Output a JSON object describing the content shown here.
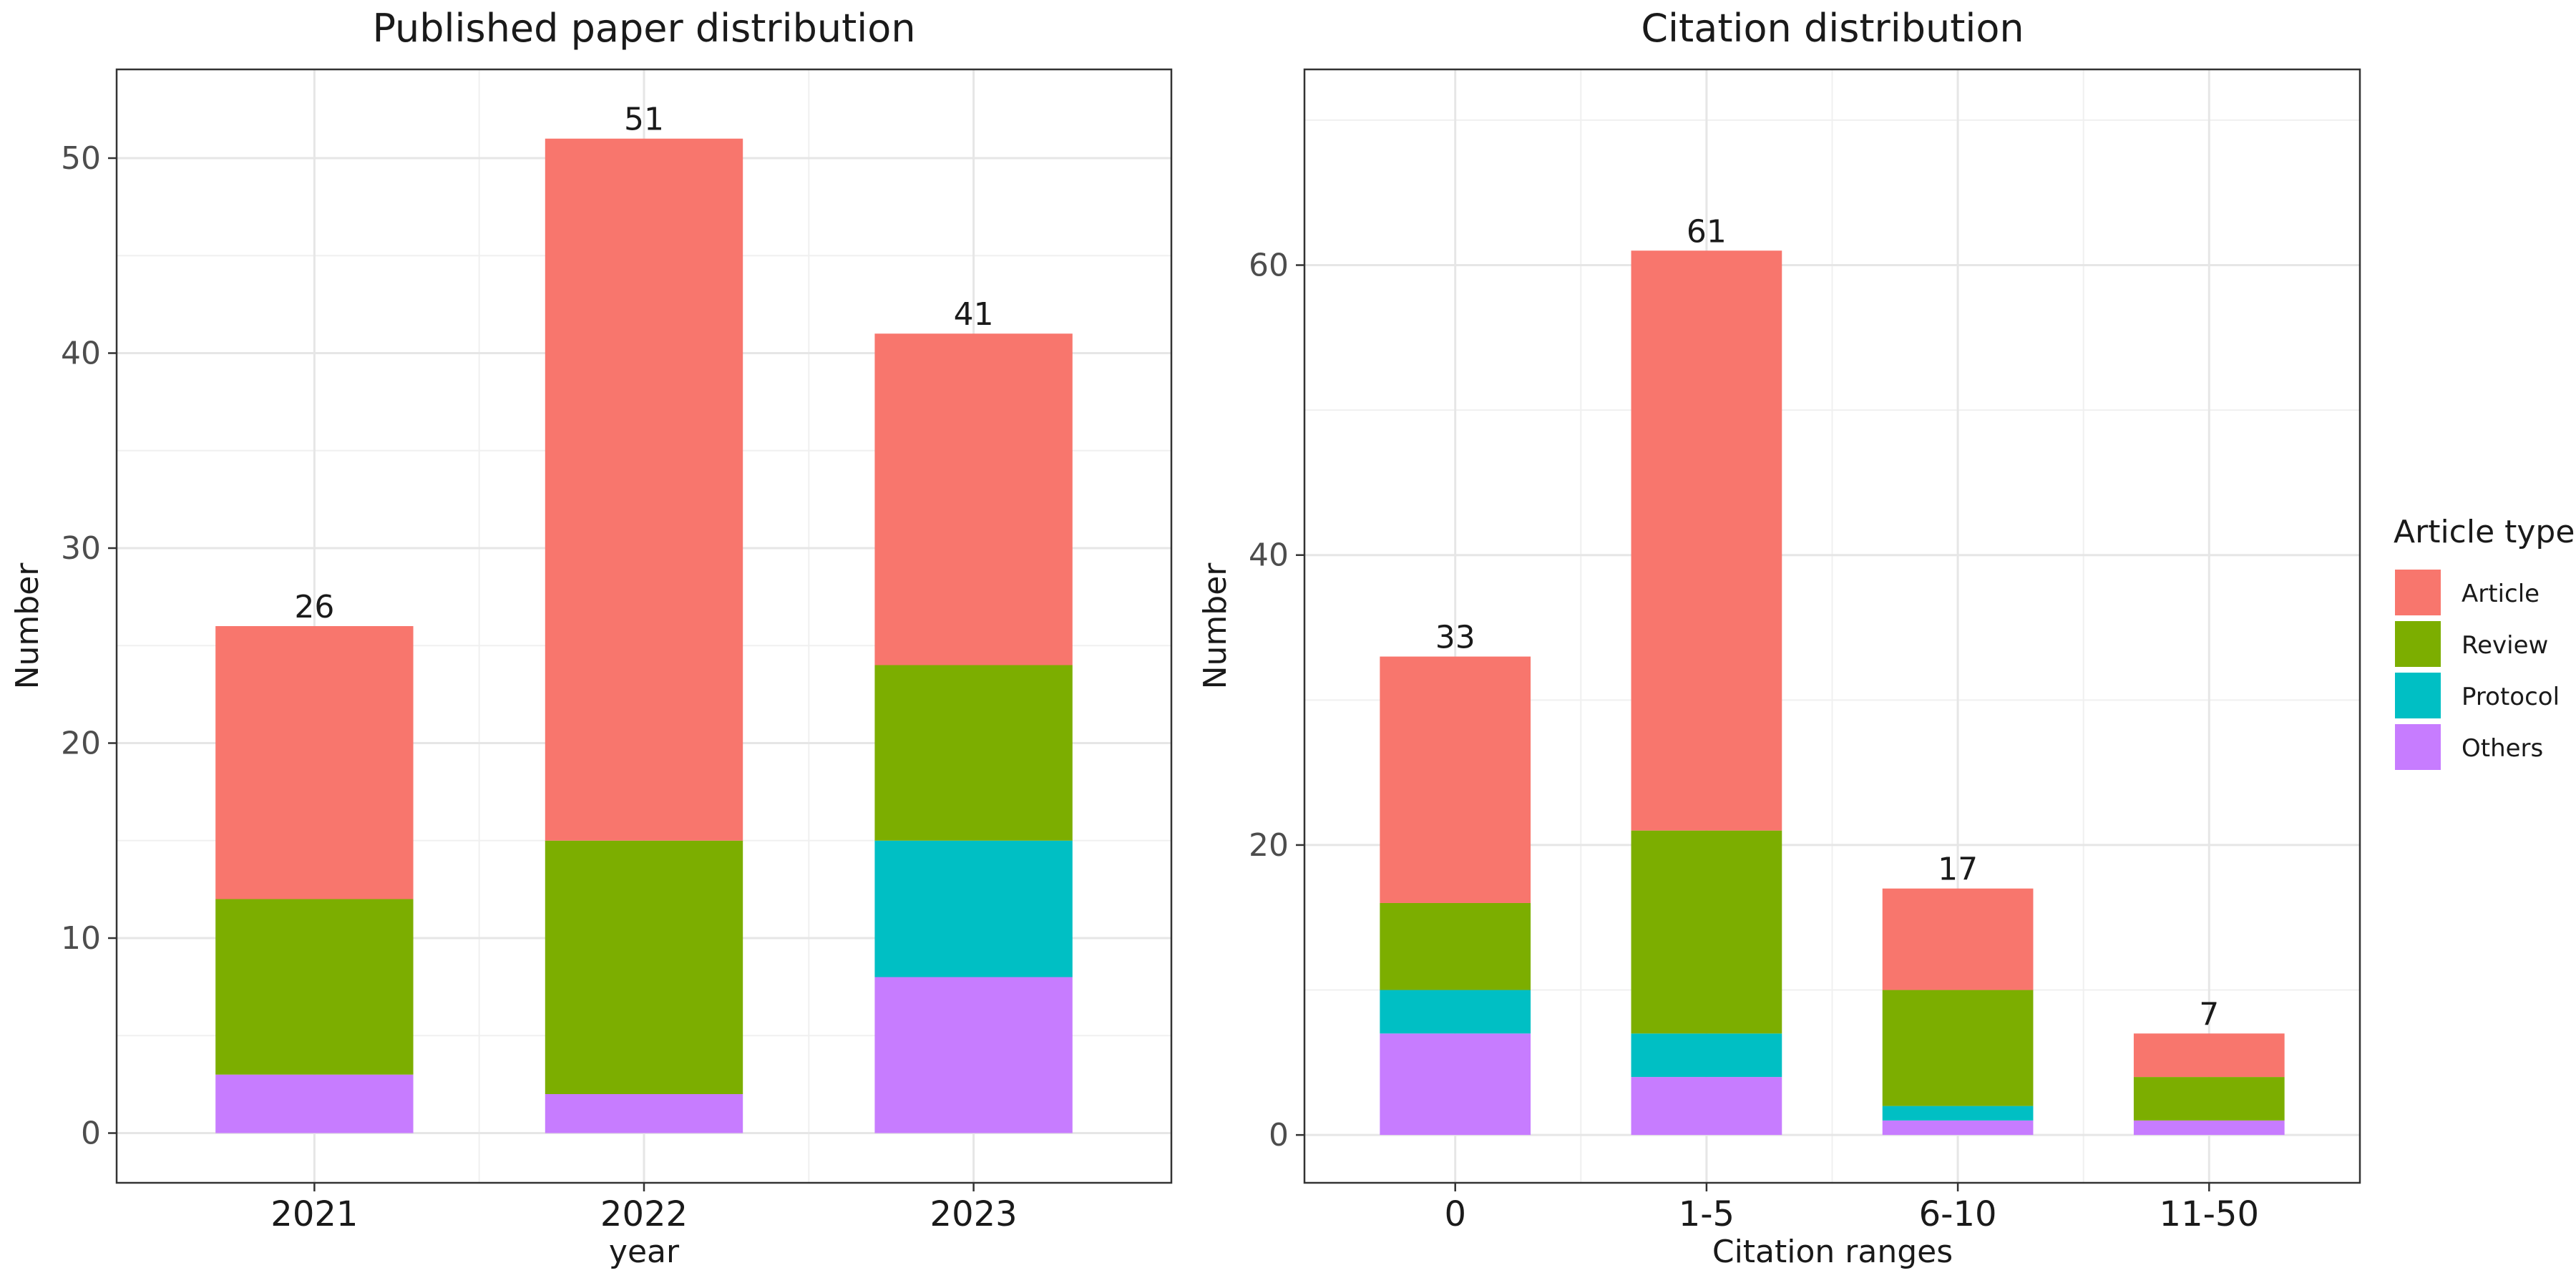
{
  "colors": {
    "Article": "#F8766D",
    "Review": "#7CAE00",
    "Protocol": "#00BFC4",
    "Others": "#C77CFF"
  },
  "legend": {
    "title": "Article type",
    "items": [
      {
        "key": "Article",
        "label": "Article",
        "color": "#F8766D"
      },
      {
        "key": "Review",
        "label": "Review",
        "color": "#7CAE00"
      },
      {
        "key": "Protocol",
        "label": "Protocol",
        "color": "#00BFC4"
      },
      {
        "key": "Others",
        "label": "Others",
        "color": "#C77CFF"
      }
    ],
    "placement": "right"
  },
  "chart_data": [
    {
      "type": "bar",
      "stacked": true,
      "title": "Published paper distribution",
      "xlabel": "year",
      "ylabel": "Number",
      "categories": [
        "2021",
        "2022",
        "2023"
      ],
      "series": [
        {
          "name": "Others",
          "values": [
            3,
            2,
            8
          ]
        },
        {
          "name": "Protocol",
          "values": [
            0,
            0,
            7
          ]
        },
        {
          "name": "Review",
          "values": [
            9,
            13,
            9
          ]
        },
        {
          "name": "Article",
          "values": [
            14,
            36,
            17
          ]
        }
      ],
      "totals": [
        26,
        51,
        41
      ],
      "ylim": [
        -2.55,
        54.55
      ],
      "yticks": [
        0,
        10,
        20,
        30,
        40,
        50
      ],
      "grid": true
    },
    {
      "type": "bar",
      "stacked": true,
      "title": "Citation distribution",
      "xlabel": "Citation ranges",
      "ylabel": "Number",
      "categories": [
        "0",
        "1-5",
        "6-10",
        "11-50"
      ],
      "series": [
        {
          "name": "Others",
          "values": [
            7,
            4,
            1,
            1
          ]
        },
        {
          "name": "Protocol",
          "values": [
            3,
            3,
            1,
            0
          ]
        },
        {
          "name": "Review",
          "values": [
            6,
            14,
            8,
            3
          ]
        },
        {
          "name": "Article",
          "values": [
            17,
            40,
            7,
            3
          ]
        }
      ],
      "totals": [
        33,
        61,
        17,
        7
      ],
      "ylim": [
        -3.3,
        73.5
      ],
      "yticks": [
        0,
        20,
        40,
        60
      ],
      "grid": true
    }
  ]
}
